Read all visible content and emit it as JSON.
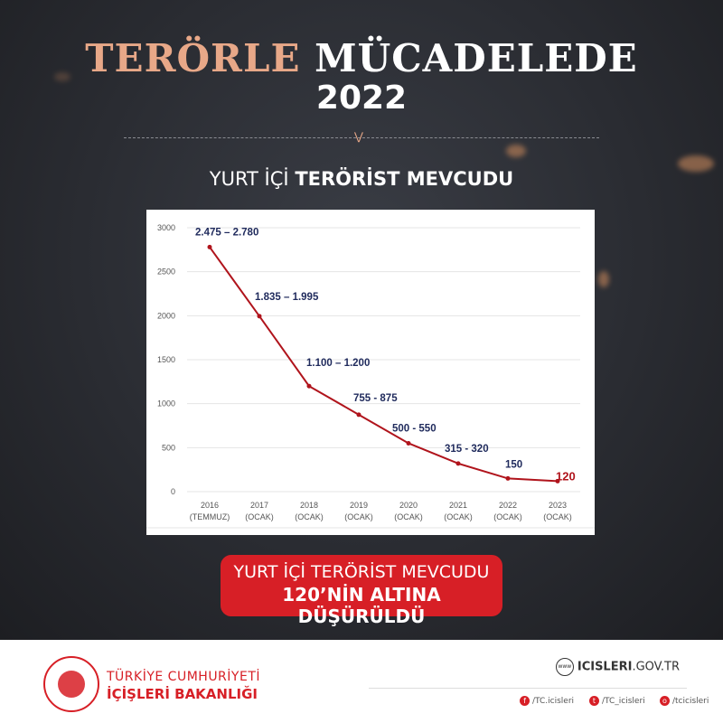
{
  "header": {
    "title_accent": "TERÖRLE",
    "title_rest": "MÜCADELEDE",
    "year": "2022",
    "subtitle_light": "YURT İÇİ",
    "subtitle_bold": "TERÖRİST MEVCUDU"
  },
  "chart_data": {
    "type": "line",
    "categories": [
      "2016 (TEMMUZ)",
      "2017 (OCAK)",
      "2018 (OCAK)",
      "2019 (OCAK)",
      "2020 (OCAK)",
      "2021 (OCAK)",
      "2022 (OCAK)",
      "2023 (OCAK)"
    ],
    "category_lines": [
      [
        "2016",
        "(TEMMUZ)"
      ],
      [
        "2017",
        "(OCAK)"
      ],
      [
        "2018",
        "(OCAK)"
      ],
      [
        "2019",
        "(OCAK)"
      ],
      [
        "2020",
        "(OCAK)"
      ],
      [
        "2021",
        "(OCAK)"
      ],
      [
        "2022",
        "(OCAK)"
      ],
      [
        "2023",
        "(OCAK)"
      ]
    ],
    "values": [
      2780,
      1995,
      1200,
      875,
      550,
      320,
      150,
      120
    ],
    "data_labels": [
      "2.475 – 2.780",
      "1.835 – 1.995",
      "1.100 – 1.200",
      "755 - 875",
      "500 - 550",
      "315 - 320",
      "150",
      "120"
    ],
    "ylim": [
      0,
      3000
    ],
    "yticks": [
      0,
      500,
      1000,
      1500,
      2000,
      2500,
      3000
    ],
    "grid": true,
    "line_color": "#b0141c",
    "label_color": "#1f2a5c",
    "highlight_label_color": "#b0141c"
  },
  "banner": {
    "line1": "YURT İÇİ TERÖRİST MEVCUDU",
    "line2": "120’NİN ALTINA DÜŞÜRÜLDÜ",
    "color": "#d71f26"
  },
  "footer": {
    "org_line1": "TÜRKİYE CUMHURİYETİ",
    "org_line2": "İÇİŞLERİ BAKANLIĞI",
    "website_bold": "ICISLERI",
    "website_rest": ".GOV.TR",
    "website_icon_text": "www",
    "facebook": "/TC.icisleri",
    "twitter": "/TC_icisleri",
    "instagram": "/tcicisleri"
  }
}
